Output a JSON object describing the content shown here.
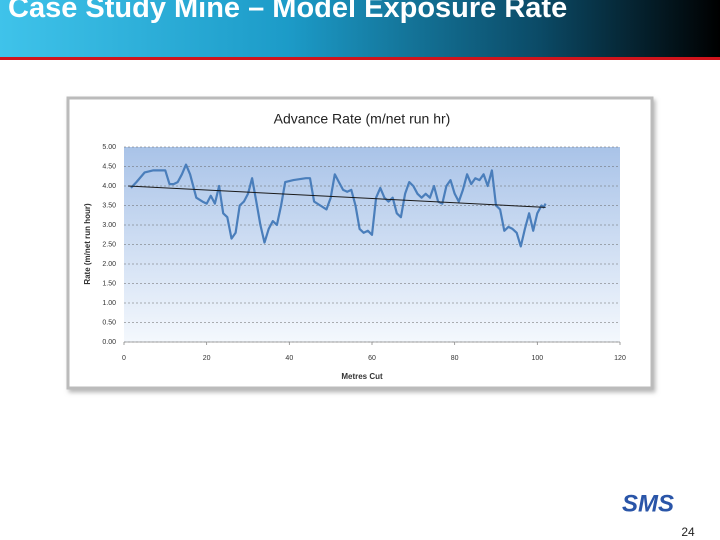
{
  "header": {
    "title": "Case Study Mine – Model Exposure Rate"
  },
  "chart_data": {
    "type": "line",
    "title": "Advance Rate (m/net run hr)",
    "x_label": "Metres Cut",
    "y_label": "Rate (m/net run hour)",
    "x": [
      1.7,
      3,
      5,
      7,
      8,
      10,
      11,
      12,
      13,
      14,
      15,
      16,
      17.5,
      19,
      20,
      21,
      22,
      23,
      24,
      25,
      26,
      27,
      28,
      29,
      30,
      31,
      32,
      33,
      34,
      35,
      36,
      37,
      38,
      39,
      41,
      44,
      45,
      46,
      47.5,
      49,
      50,
      51,
      52,
      53,
      54,
      55,
      56,
      57,
      58,
      59,
      60,
      61,
      62,
      63,
      64,
      65,
      66,
      67,
      68,
      69,
      70,
      71,
      72,
      73,
      74,
      75,
      76,
      77,
      78,
      79,
      80,
      81,
      82,
      83,
      84,
      85,
      86,
      87,
      88,
      89,
      90,
      91,
      92,
      93,
      94,
      95,
      96,
      97,
      98,
      99,
      100,
      101,
      101.5,
      102
    ],
    "series": [
      {
        "color": "#4a7ebb",
        "values": [
          3.95,
          4.1,
          4.35,
          4.4,
          4.4,
          4.4,
          4.05,
          4.05,
          4.1,
          4.3,
          4.55,
          4.3,
          3.7,
          3.6,
          3.55,
          3.75,
          3.55,
          4.0,
          3.3,
          3.2,
          2.65,
          2.8,
          3.5,
          3.6,
          3.8,
          4.2,
          3.6,
          3.0,
          2.55,
          2.9,
          3.1,
          3.0,
          3.5,
          4.1,
          4.15,
          4.2,
          4.2,
          3.6,
          3.5,
          3.4,
          3.7,
          4.3,
          4.1,
          3.9,
          3.85,
          3.9,
          3.5,
          2.9,
          2.8,
          2.85,
          2.75,
          3.7,
          3.95,
          3.7,
          3.6,
          3.7,
          3.3,
          3.2,
          3.8,
          4.1,
          4.0,
          3.8,
          3.7,
          3.8,
          3.7,
          4.0,
          3.6,
          3.55,
          4.0,
          4.15,
          3.8,
          3.6,
          3.9,
          4.3,
          4.05,
          4.2,
          4.15,
          4.3,
          4.0,
          4.4,
          3.5,
          3.4,
          2.85,
          2.95,
          2.9,
          2.8,
          2.45,
          2.9,
          3.3,
          2.85,
          3.3,
          3.5,
          3.45,
          3.55
        ]
      }
    ],
    "trendline": {
      "x": [
        1,
        102
      ],
      "values": [
        4.0,
        3.45
      ],
      "color": "#1a1a1a"
    },
    "xlim": [
      0,
      120
    ],
    "xticks": [
      0,
      20,
      40,
      60,
      80,
      100,
      120
    ],
    "ylim": [
      0,
      5
    ],
    "yticks": [
      {
        "value": 0,
        "label": "0.00"
      },
      {
        "value": 0.5,
        "label": "0.50"
      },
      {
        "value": 1,
        "label": "1.00"
      },
      {
        "value": 1.5,
        "label": "1.50"
      },
      {
        "value": 2,
        "label": "2.00"
      },
      {
        "value": 2.5,
        "label": "2.50"
      },
      {
        "value": 3,
        "label": "3.00"
      },
      {
        "value": 3.5,
        "label": "3.50"
      },
      {
        "value": 4,
        "label": "4.00"
      },
      {
        "value": 4.5,
        "label": "4.50"
      },
      {
        "value": 5,
        "label": "5.00"
      }
    ],
    "grid": true
  },
  "logo": "SMS",
  "page_number": "24"
}
